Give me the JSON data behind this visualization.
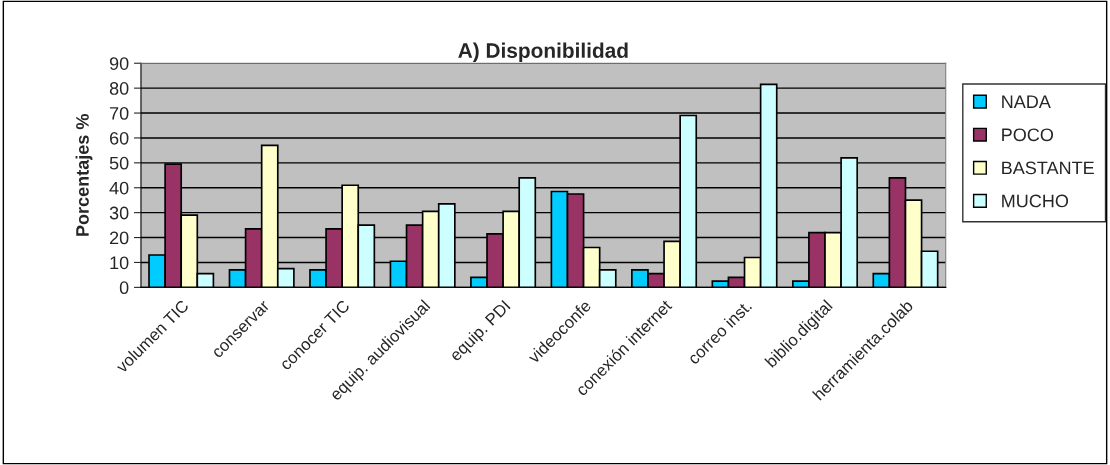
{
  "chart_data": {
    "type": "bar",
    "title": "A) Disponibilidad",
    "ylabel": "Porcentajes %",
    "categories": [
      "volumen TIC",
      "conservar",
      "conocer TIC",
      "equip. audiovisual",
      "equip. PDI",
      "videoconfe",
      "conexión internet",
      "correo inst.",
      "biblio.digital",
      "herramienta.colab"
    ],
    "series": [
      {
        "name": "NADA",
        "color": "#00ccff",
        "values": [
          13,
          7,
          7,
          10.5,
          4,
          38.5,
          7,
          2.5,
          2.5,
          5.5
        ]
      },
      {
        "name": "POCO",
        "color": "#993366",
        "values": [
          49.5,
          23.5,
          23.5,
          25,
          21.5,
          37.5,
          5.5,
          4,
          22,
          44
        ]
      },
      {
        "name": "BASTANTE",
        "color": "#ffffcc",
        "values": [
          29,
          57,
          41,
          30.5,
          30.5,
          16,
          18.5,
          12,
          22,
          35
        ]
      },
      {
        "name": "MUCHO",
        "color": "#ccffff",
        "values": [
          5.5,
          7.5,
          25,
          33.5,
          44,
          7,
          69,
          81.5,
          52,
          14.5
        ]
      }
    ],
    "ylim": [
      0,
      90
    ],
    "yticks": [
      0,
      10,
      20,
      30,
      40,
      50,
      60,
      70,
      80,
      90
    ],
    "grid": "y",
    "legend": "right"
  }
}
